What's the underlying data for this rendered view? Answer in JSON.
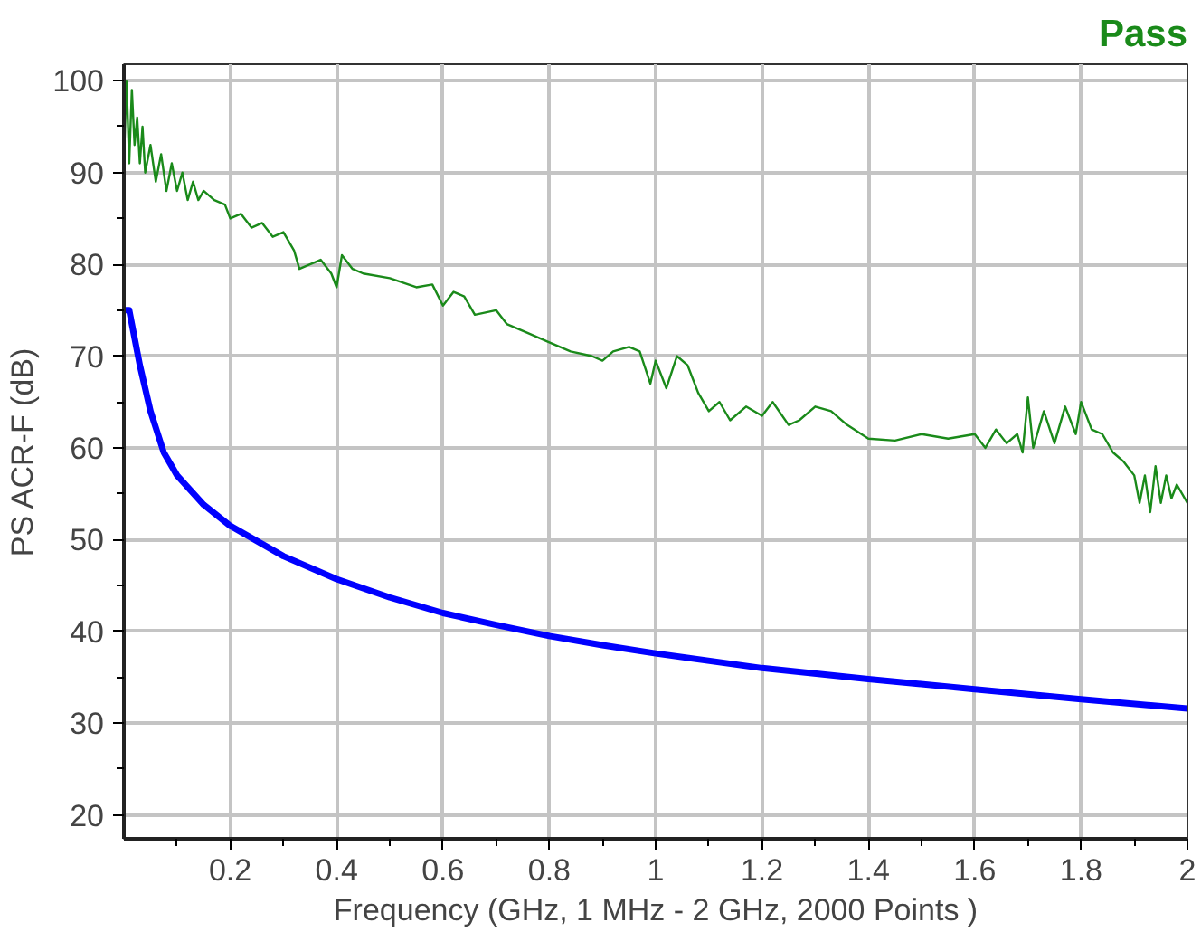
{
  "chart_data": {
    "type": "line",
    "title": "Pass",
    "xlabel": "Frequency (GHz, 1 MHz - 2 GHz, 2000 Points )",
    "ylabel": "PS ACR-F (dB)",
    "xlim": [
      0,
      2
    ],
    "ylim": [
      17.4,
      101.8
    ],
    "xticks": [
      {
        "value": 0.1,
        "label": null
      },
      0.2,
      {
        "value": 0.3,
        "label": null
      },
      0.4,
      {
        "value": 0.5,
        "label": null
      },
      0.6,
      {
        "value": 0.7,
        "label": null
      },
      0.8,
      {
        "value": 0.9,
        "label": null
      },
      1,
      {
        "value": 1.1,
        "label": null
      },
      1.2,
      {
        "value": 1.3,
        "label": null
      },
      1.4,
      {
        "value": 1.5,
        "label": null
      },
      1.6,
      {
        "value": 1.7,
        "label": null
      },
      1.8,
      {
        "value": 1.9,
        "label": null
      },
      2
    ],
    "yticks": [
      20,
      {
        "value": 25,
        "label": null
      },
      30,
      {
        "value": 35,
        "label": null
      },
      40,
      {
        "value": 45,
        "label": null
      },
      50,
      {
        "value": 55,
        "label": null
      },
      60,
      {
        "value": 65,
        "label": null
      },
      70,
      {
        "value": 75,
        "label": null
      },
      80,
      {
        "value": 85,
        "label": null
      },
      90,
      {
        "value": 95,
        "label": null
      },
      100
    ],
    "grid": true,
    "marker": "none",
    "series": [
      {
        "color": "#1a8a1a",
        "x": [
          0.001,
          0.005,
          0.01,
          0.015,
          0.02,
          0.025,
          0.03,
          0.035,
          0.04,
          0.05,
          0.06,
          0.07,
          0.08,
          0.09,
          0.1,
          0.11,
          0.12,
          0.13,
          0.14,
          0.15,
          0.17,
          0.19,
          0.2,
          0.22,
          0.24,
          0.26,
          0.28,
          0.3,
          0.32,
          0.33,
          0.35,
          0.37,
          0.39,
          0.4,
          0.41,
          0.43,
          0.45,
          0.5,
          0.55,
          0.58,
          0.6,
          0.62,
          0.64,
          0.66,
          0.7,
          0.72,
          0.76,
          0.8,
          0.84,
          0.88,
          0.9,
          0.92,
          0.95,
          0.97,
          0.99,
          1.0,
          1.02,
          1.04,
          1.06,
          1.08,
          1.1,
          1.12,
          1.14,
          1.17,
          1.2,
          1.22,
          1.25,
          1.27,
          1.3,
          1.33,
          1.36,
          1.4,
          1.45,
          1.5,
          1.55,
          1.6,
          1.62,
          1.64,
          1.66,
          1.68,
          1.69,
          1.7,
          1.71,
          1.73,
          1.75,
          1.77,
          1.79,
          1.8,
          1.82,
          1.84,
          1.86,
          1.88,
          1.9,
          1.91,
          1.92,
          1.93,
          1.94,
          1.95,
          1.96,
          1.97,
          1.98,
          2.0
        ],
        "values": [
          93,
          100,
          91,
          99,
          93,
          96,
          91,
          95,
          90,
          93,
          89,
          92,
          88,
          91,
          88,
          90,
          87,
          89,
          87,
          88,
          87,
          86.5,
          85,
          85.5,
          84,
          84.5,
          83,
          83.5,
          81.5,
          79.5,
          80,
          80.5,
          79,
          77.5,
          81,
          79.5,
          79,
          78.5,
          77.5,
          77.8,
          75.5,
          77,
          76.5,
          74.5,
          75,
          73.5,
          72.5,
          71.5,
          70.5,
          70,
          69.5,
          70.5,
          71,
          70.5,
          67,
          69.5,
          66.5,
          70,
          69,
          66,
          64,
          65,
          63,
          64.5,
          63.5,
          65,
          62.5,
          63,
          64.5,
          64,
          62.5,
          61,
          60.8,
          61.5,
          61,
          61.5,
          60,
          62,
          60.5,
          61.5,
          59.5,
          65.5,
          60,
          64,
          60.5,
          64.5,
          61.5,
          65,
          62,
          61.5,
          59.5,
          58.5,
          57,
          54,
          57,
          53,
          58,
          54,
          57,
          54.5,
          56,
          54
        ]
      },
      {
        "color": "#0000ff",
        "x": [
          0.001,
          0.01,
          0.02,
          0.03,
          0.05,
          0.075,
          0.1,
          0.15,
          0.2,
          0.3,
          0.4,
          0.5,
          0.6,
          0.7,
          0.8,
          0.9,
          1.0,
          1.2,
          1.4,
          1.6,
          1.8,
          2.0
        ],
        "values": [
          75,
          75,
          72,
          69,
          64,
          59.5,
          57,
          53.8,
          51.5,
          48.2,
          45.7,
          43.7,
          42,
          40.7,
          39.5,
          38.5,
          37.6,
          36,
          34.8,
          33.7,
          32.6,
          31.6
        ]
      }
    ]
  }
}
